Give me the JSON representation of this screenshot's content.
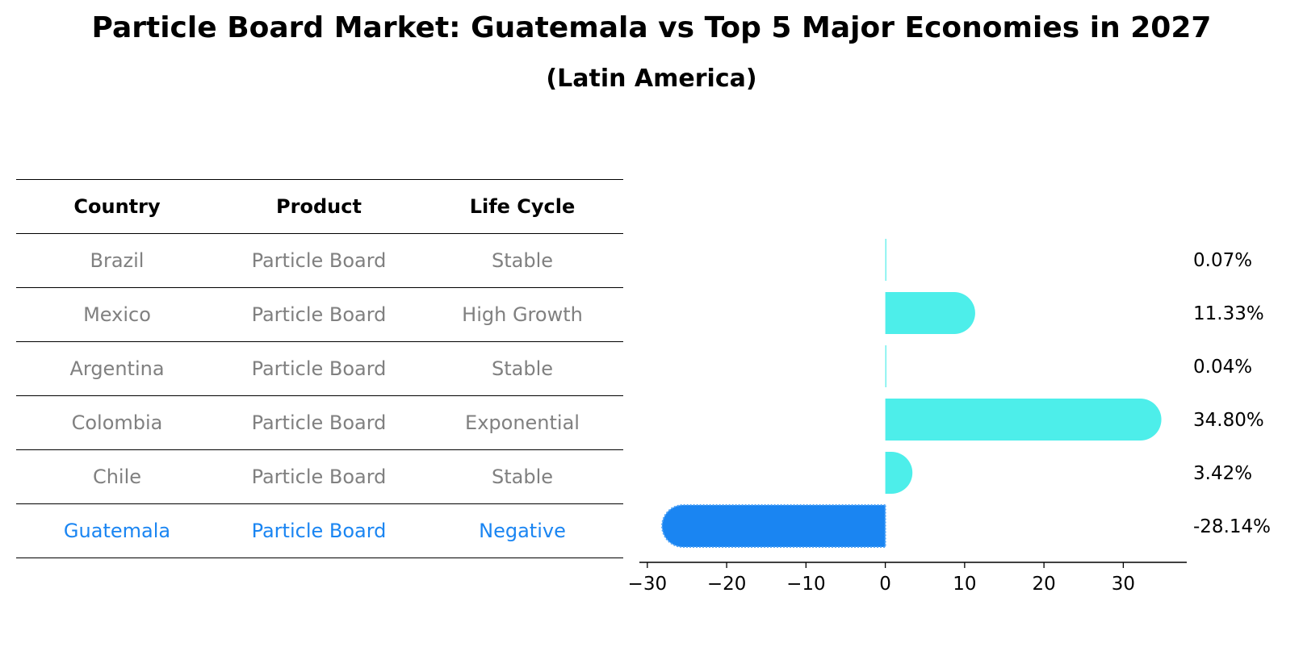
{
  "title": "Particle Board Market: Guatemala vs Top 5 Major Economies in 2027",
  "subtitle": "(Latin America)",
  "colors": {
    "bar": "#4DEEEA",
    "highlight": "#1A85F2",
    "row_text": "#808080",
    "text": "#000000"
  },
  "table": {
    "headers": [
      "Country",
      "Product",
      "Life Cycle"
    ],
    "rows": [
      {
        "country": "Brazil",
        "product": "Particle Board",
        "life_cycle": "Stable"
      },
      {
        "country": "Mexico",
        "product": "Particle Board",
        "life_cycle": "High Growth"
      },
      {
        "country": "Argentina",
        "product": "Particle Board",
        "life_cycle": "Stable"
      },
      {
        "country": "Colombia",
        "product": "Particle Board",
        "life_cycle": "Exponential"
      },
      {
        "country": "Chile",
        "product": "Particle Board",
        "life_cycle": "Stable"
      },
      {
        "country": "Guatemala",
        "product": "Particle Board",
        "life_cycle": "Negative"
      }
    ]
  },
  "chart_data": {
    "type": "bar",
    "orientation": "horizontal",
    "title": "Particle Board Market: Guatemala vs Top 5 Major Economies in 2027",
    "subtitle": "(Latin America)",
    "categories": [
      "Brazil",
      "Mexico",
      "Argentina",
      "Colombia",
      "Chile",
      "Guatemala"
    ],
    "values": [
      0.07,
      11.33,
      0.04,
      34.8,
      3.42,
      -28.14
    ],
    "value_labels": [
      "0.07%",
      "11.33%",
      "0.04%",
      "34.80%",
      "3.42%",
      "-28.14%"
    ],
    "highlight": "Guatemala",
    "xlim": [
      -31,
      38
    ],
    "xticks": [
      -30,
      -20,
      -10,
      0,
      10,
      20,
      30
    ],
    "xtick_labels": [
      "−30",
      "−20",
      "−10",
      "0",
      "10",
      "20",
      "30"
    ],
    "xlabel": "",
    "ylabel": "",
    "grid": false
  }
}
